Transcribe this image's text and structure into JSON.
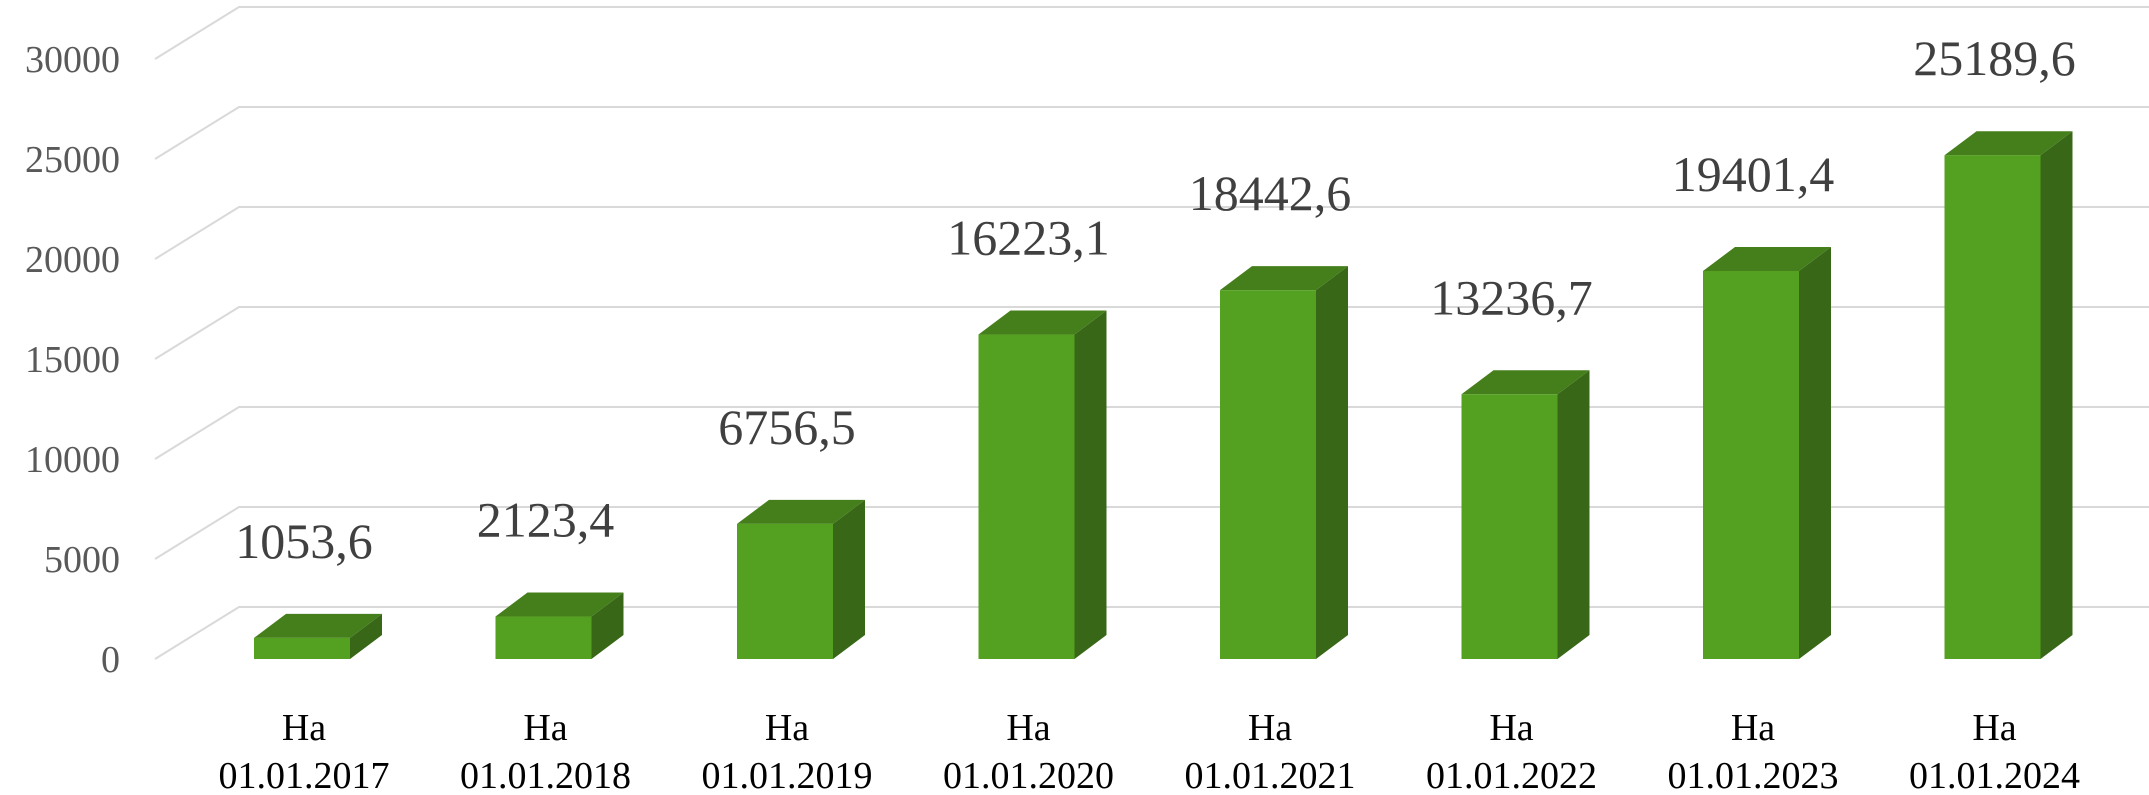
{
  "chart_data": {
    "type": "bar",
    "style": "3d-column",
    "title": "",
    "xlabel": "",
    "ylabel": "",
    "ylim": [
      0,
      32000
    ],
    "yticks": [
      0,
      5000,
      10000,
      15000,
      20000,
      25000,
      30000
    ],
    "grid": true,
    "legend": "none",
    "categories": [
      [
        "На",
        "01.01.2017"
      ],
      [
        "На",
        "01.01.2018"
      ],
      [
        "На",
        "01.01.2019"
      ],
      [
        "На",
        "01.01.2020"
      ],
      [
        "На",
        "01.01.2021"
      ],
      [
        "На",
        "01.01.2022"
      ],
      [
        "На",
        "01.01.2023"
      ],
      [
        "На",
        "01.01.2024"
      ]
    ],
    "values": [
      1053.6,
      2123.4,
      6756.5,
      16223.1,
      18442.6,
      13236.7,
      19401.4,
      25189.6
    ],
    "data_labels": [
      "1053,6",
      "2123,4",
      "6756,5",
      "16223,1",
      "18442,6",
      "13236,7",
      "19401,4",
      "25189,6"
    ],
    "colors": {
      "bar_front": "#54a021",
      "bar_top": "#457f1b",
      "bar_side": "#386717",
      "grid": "#d9d9d9",
      "ytick_text": "#595959",
      "xtick_text": "#000000",
      "data_label_text": "#404040"
    }
  }
}
